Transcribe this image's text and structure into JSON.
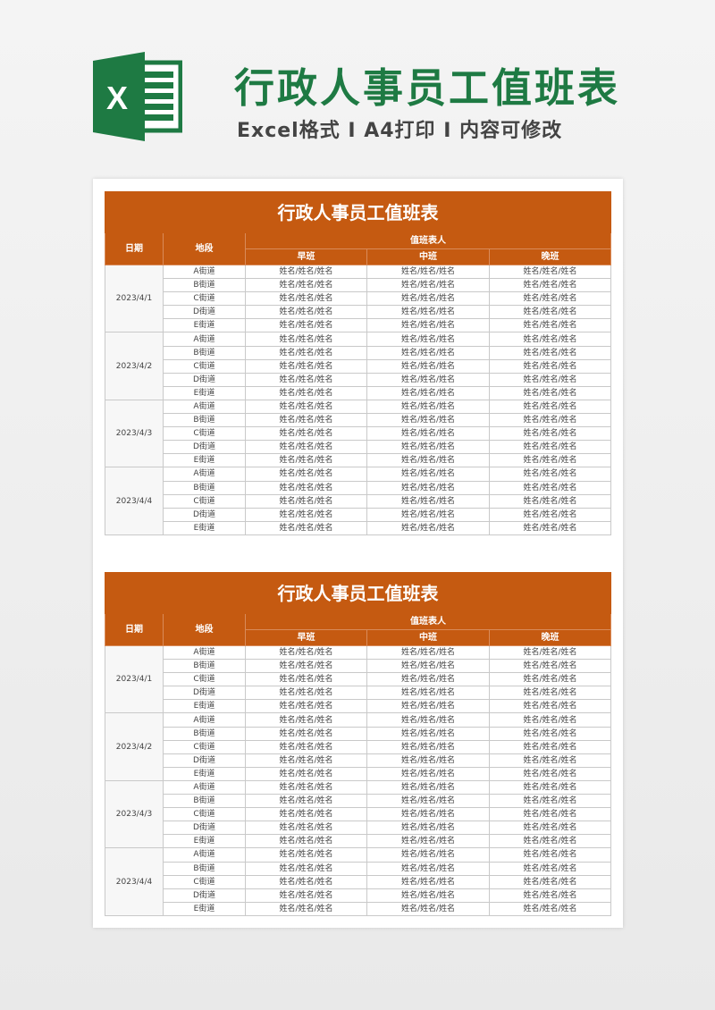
{
  "header": {
    "title": "行政人事员工值班表",
    "subtitle": "Excel格式 I A4打印 I 内容可修改",
    "logo_letter": "X",
    "brand_color": "#1e7a43"
  },
  "colors": {
    "table_header": "#c55a11"
  },
  "tables": [
    {
      "title": "行政人事员工值班表",
      "col_date": "日期",
      "col_section": "地段",
      "col_group": "值班表人",
      "shifts": [
        "早班",
        "中班",
        "晚班"
      ],
      "groups": [
        {
          "date": "2023/4/1",
          "rows": [
            [
              "A街道",
              "姓名/姓名/姓名",
              "姓名/姓名/姓名",
              "姓名/姓名/姓名"
            ],
            [
              "B街道",
              "姓名/姓名/姓名",
              "姓名/姓名/姓名",
              "姓名/姓名/姓名"
            ],
            [
              "C街道",
              "姓名/姓名/姓名",
              "姓名/姓名/姓名",
              "姓名/姓名/姓名"
            ],
            [
              "D街道",
              "姓名/姓名/姓名",
              "姓名/姓名/姓名",
              "姓名/姓名/姓名"
            ],
            [
              "E街道",
              "姓名/姓名/姓名",
              "姓名/姓名/姓名",
              "姓名/姓名/姓名"
            ]
          ]
        },
        {
          "date": "2023/4/2",
          "rows": [
            [
              "A街道",
              "姓名/姓名/姓名",
              "姓名/姓名/姓名",
              "姓名/姓名/姓名"
            ],
            [
              "B街道",
              "姓名/姓名/姓名",
              "姓名/姓名/姓名",
              "姓名/姓名/姓名"
            ],
            [
              "C街道",
              "姓名/姓名/姓名",
              "姓名/姓名/姓名",
              "姓名/姓名/姓名"
            ],
            [
              "D街道",
              "姓名/姓名/姓名",
              "姓名/姓名/姓名",
              "姓名/姓名/姓名"
            ],
            [
              "E街道",
              "姓名/姓名/姓名",
              "姓名/姓名/姓名",
              "姓名/姓名/姓名"
            ]
          ]
        },
        {
          "date": "2023/4/3",
          "rows": [
            [
              "A街道",
              "姓名/姓名/姓名",
              "姓名/姓名/姓名",
              "姓名/姓名/姓名"
            ],
            [
              "B街道",
              "姓名/姓名/姓名",
              "姓名/姓名/姓名",
              "姓名/姓名/姓名"
            ],
            [
              "C街道",
              "姓名/姓名/姓名",
              "姓名/姓名/姓名",
              "姓名/姓名/姓名"
            ],
            [
              "D街道",
              "姓名/姓名/姓名",
              "姓名/姓名/姓名",
              "姓名/姓名/姓名"
            ],
            [
              "E街道",
              "姓名/姓名/姓名",
              "姓名/姓名/姓名",
              "姓名/姓名/姓名"
            ]
          ]
        },
        {
          "date": "2023/4/4",
          "rows": [
            [
              "A街道",
              "姓名/姓名/姓名",
              "姓名/姓名/姓名",
              "姓名/姓名/姓名"
            ],
            [
              "B街道",
              "姓名/姓名/姓名",
              "姓名/姓名/姓名",
              "姓名/姓名/姓名"
            ],
            [
              "C街道",
              "姓名/姓名/姓名",
              "姓名/姓名/姓名",
              "姓名/姓名/姓名"
            ],
            [
              "D街道",
              "姓名/姓名/姓名",
              "姓名/姓名/姓名",
              "姓名/姓名/姓名"
            ],
            [
              "E街道",
              "姓名/姓名/姓名",
              "姓名/姓名/姓名",
              "姓名/姓名/姓名"
            ]
          ]
        }
      ]
    },
    {
      "title": "行政人事员工值班表",
      "col_date": "日期",
      "col_section": "地段",
      "col_group": "值班表人",
      "shifts": [
        "早班",
        "中班",
        "晚班"
      ],
      "groups": [
        {
          "date": "2023/4/1",
          "rows": [
            [
              "A街道",
              "姓名/姓名/姓名",
              "姓名/姓名/姓名",
              "姓名/姓名/姓名"
            ],
            [
              "B街道",
              "姓名/姓名/姓名",
              "姓名/姓名/姓名",
              "姓名/姓名/姓名"
            ],
            [
              "C街道",
              "姓名/姓名/姓名",
              "姓名/姓名/姓名",
              "姓名/姓名/姓名"
            ],
            [
              "D街道",
              "姓名/姓名/姓名",
              "姓名/姓名/姓名",
              "姓名/姓名/姓名"
            ],
            [
              "E街道",
              "姓名/姓名/姓名",
              "姓名/姓名/姓名",
              "姓名/姓名/姓名"
            ]
          ]
        },
        {
          "date": "2023/4/2",
          "rows": [
            [
              "A街道",
              "姓名/姓名/姓名",
              "姓名/姓名/姓名",
              "姓名/姓名/姓名"
            ],
            [
              "B街道",
              "姓名/姓名/姓名",
              "姓名/姓名/姓名",
              "姓名/姓名/姓名"
            ],
            [
              "C街道",
              "姓名/姓名/姓名",
              "姓名/姓名/姓名",
              "姓名/姓名/姓名"
            ],
            [
              "D街道",
              "姓名/姓名/姓名",
              "姓名/姓名/姓名",
              "姓名/姓名/姓名"
            ],
            [
              "E街道",
              "姓名/姓名/姓名",
              "姓名/姓名/姓名",
              "姓名/姓名/姓名"
            ]
          ]
        },
        {
          "date": "2023/4/3",
          "rows": [
            [
              "A街道",
              "姓名/姓名/姓名",
              "姓名/姓名/姓名",
              "姓名/姓名/姓名"
            ],
            [
              "B街道",
              "姓名/姓名/姓名",
              "姓名/姓名/姓名",
              "姓名/姓名/姓名"
            ],
            [
              "C街道",
              "姓名/姓名/姓名",
              "姓名/姓名/姓名",
              "姓名/姓名/姓名"
            ],
            [
              "D街道",
              "姓名/姓名/姓名",
              "姓名/姓名/姓名",
              "姓名/姓名/姓名"
            ],
            [
              "E街道",
              "姓名/姓名/姓名",
              "姓名/姓名/姓名",
              "姓名/姓名/姓名"
            ]
          ]
        },
        {
          "date": "2023/4/4",
          "rows": [
            [
              "A街道",
              "姓名/姓名/姓名",
              "姓名/姓名/姓名",
              "姓名/姓名/姓名"
            ],
            [
              "B街道",
              "姓名/姓名/姓名",
              "姓名/姓名/姓名",
              "姓名/姓名/姓名"
            ],
            [
              "C街道",
              "姓名/姓名/姓名",
              "姓名/姓名/姓名",
              "姓名/姓名/姓名"
            ],
            [
              "D街道",
              "姓名/姓名/姓名",
              "姓名/姓名/姓名",
              "姓名/姓名/姓名"
            ],
            [
              "E街道",
              "姓名/姓名/姓名",
              "姓名/姓名/姓名",
              "姓名/姓名/姓名"
            ]
          ]
        }
      ]
    }
  ]
}
